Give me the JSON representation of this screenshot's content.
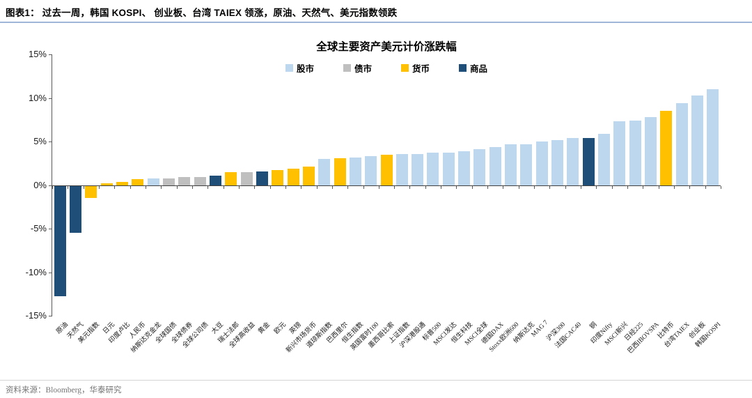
{
  "header": {
    "title": "图表1： 过去一周，韩国 KOSPI、 创业板、台湾 TAIEX 领涨，原油、天然气、美元指数领跌"
  },
  "chart": {
    "title": "全球主要资产美元计价涨跌幅",
    "legend": [
      {
        "label": "股市",
        "key": "stock"
      },
      {
        "label": "债市",
        "key": "bond"
      },
      {
        "label": "货币",
        "key": "currency"
      },
      {
        "label": "商品",
        "key": "commodity"
      }
    ],
    "colors": {
      "stock": "#BDD7EE",
      "bond": "#BFBFBF",
      "currency": "#FFC000",
      "commodity": "#1F4E79"
    },
    "y_ticks": [
      "15%",
      "10%",
      "5%",
      "0%",
      "-5%",
      "-10%",
      "-15%"
    ]
  },
  "chart_data": {
    "type": "bar",
    "title": "全球主要资产美元计价涨跌幅",
    "ylabel": "",
    "y_unit": "%",
    "ylim": [
      -15,
      15
    ],
    "grid": false,
    "legend_position": "top",
    "categories": [
      "原油",
      "天然气",
      "美元指数",
      "日元",
      "印度卢比",
      "人民币",
      "纳斯达克金龙",
      "全球国债",
      "全球债券",
      "全球公司债",
      "大豆",
      "瑞士法郎",
      "全球高收益",
      "黄金",
      "欧元",
      "英镑",
      "新兴市场货币",
      "道琼斯指数",
      "巴西里尔",
      "恒生指数",
      "英国富时100",
      "墨西哥比索",
      "上证指数",
      "沪深港股通",
      "标普500",
      "MSCI发达",
      "恒生科技",
      "MSCI全球",
      "德国DAX",
      "Stoxx欧洲600",
      "纳斯达克",
      "MAG 7",
      "沪深300",
      "法国CAC40",
      "铜",
      "印度Nifty",
      "MSCI新兴",
      "日经225",
      "巴西IBOVSPA",
      "比特币",
      "台湾TAIEX",
      "创业板",
      "韩国KOSPI"
    ],
    "values": [
      -12.7,
      -5.4,
      -1.4,
      0.2,
      0.4,
      0.7,
      0.8,
      0.8,
      0.9,
      0.9,
      1.1,
      1.5,
      1.5,
      1.6,
      1.7,
      1.9,
      2.1,
      3.0,
      3.1,
      3.2,
      3.3,
      3.5,
      3.6,
      3.6,
      3.7,
      3.7,
      3.9,
      4.1,
      4.4,
      4.7,
      4.7,
      5.0,
      5.2,
      5.4,
      5.4,
      5.9,
      7.3,
      7.4,
      7.8,
      8.5,
      9.4,
      10.3,
      11.0
    ],
    "groups": [
      "commodity",
      "commodity",
      "currency",
      "currency",
      "currency",
      "currency",
      "stock",
      "bond",
      "bond",
      "bond",
      "commodity",
      "currency",
      "bond",
      "commodity",
      "currency",
      "currency",
      "currency",
      "stock",
      "currency",
      "stock",
      "stock",
      "currency",
      "stock",
      "stock",
      "stock",
      "stock",
      "stock",
      "stock",
      "stock",
      "stock",
      "stock",
      "stock",
      "stock",
      "stock",
      "commodity",
      "stock",
      "stock",
      "stock",
      "stock",
      "currency",
      "stock",
      "stock",
      "stock"
    ]
  },
  "footer": {
    "source": "资料来源：Bloomberg，华泰研究"
  }
}
